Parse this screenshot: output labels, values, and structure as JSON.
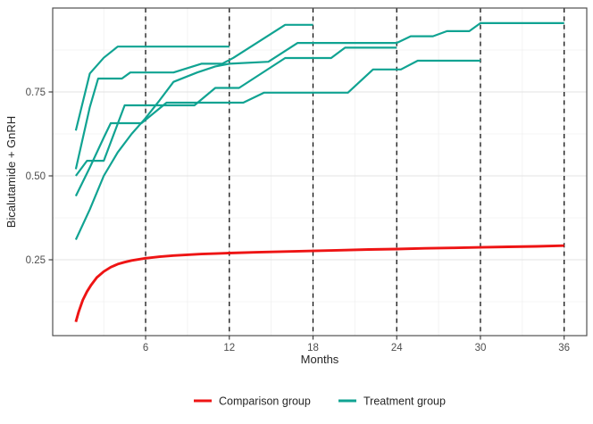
{
  "chart_data": {
    "type": "line",
    "title": "",
    "xlabel": "Months",
    "ylabel": "Bicalutamide + GnRH",
    "xlim": [
      -0.66,
      37.62
    ],
    "ylim": [
      0.024,
      1.0
    ],
    "x_ticks": [
      6,
      12,
      18,
      24,
      30,
      36
    ],
    "x_tick_labels": [
      "6",
      "12",
      "18",
      "24",
      "30",
      "36"
    ],
    "x_minor_ticks": [
      3,
      9,
      15,
      21,
      27,
      33
    ],
    "y_ticks": [
      0.25,
      0.5,
      0.75
    ],
    "y_tick_labels": [
      "0.25",
      "0.50",
      "0.75"
    ],
    "y_minor_ticks": [
      0.125,
      0.375,
      0.625,
      0.875
    ],
    "grid": true,
    "grid_major_color": "#e3e3e3",
    "grid_minor_color": "#f0f0f0",
    "panel_border_color": "#4f4f4f",
    "reference_lines": {
      "vertical_dashed_at": [
        6,
        12,
        18,
        24,
        30,
        36
      ],
      "color": "#111111"
    },
    "legend": {
      "position": "bottom",
      "entries": [
        {
          "label": "Comparison group",
          "color": "#ee1414"
        },
        {
          "label": "Treatment group",
          "color": "#10a392"
        }
      ]
    },
    "series": [
      {
        "name": "Treatment trajectory 1",
        "group": "Treatment group",
        "color": "#10a392",
        "width": 2.2,
        "points": [
          [
            1,
            0.635
          ],
          [
            2,
            0.805
          ],
          [
            3,
            0.852
          ],
          [
            4,
            0.885
          ],
          [
            12,
            0.885
          ]
        ]
      },
      {
        "name": "Treatment trajectory 2",
        "group": "Treatment group",
        "color": "#10a392",
        "width": 2.2,
        "points": [
          [
            1,
            0.52
          ],
          [
            2,
            0.705
          ],
          [
            2.6,
            0.79
          ],
          [
            4.3,
            0.79
          ],
          [
            4.9,
            0.808
          ],
          [
            8,
            0.808
          ],
          [
            10,
            0.834
          ],
          [
            11.5,
            0.834
          ],
          [
            12.3,
            0.852
          ],
          [
            16,
            0.95
          ],
          [
            18,
            0.95
          ]
        ]
      },
      {
        "name": "Treatment trajectory 3",
        "group": "Treatment group",
        "color": "#10a392",
        "width": 2.2,
        "points": [
          [
            1,
            0.5
          ],
          [
            1.8,
            0.545
          ],
          [
            3,
            0.545
          ],
          [
            4.5,
            0.71
          ],
          [
            9.5,
            0.71
          ],
          [
            11,
            0.762
          ],
          [
            12.7,
            0.762
          ],
          [
            16,
            0.851
          ],
          [
            19.3,
            0.851
          ],
          [
            20.3,
            0.882
          ],
          [
            24,
            0.882
          ]
        ]
      },
      {
        "name": "Treatment trajectory 4",
        "group": "Treatment group",
        "color": "#10a392",
        "width": 2.2,
        "points": [
          [
            1,
            0.44
          ],
          [
            2,
            0.525
          ],
          [
            3,
            0.614
          ],
          [
            3.5,
            0.657
          ],
          [
            5.7,
            0.657
          ],
          [
            7.5,
            0.718
          ],
          [
            13,
            0.718
          ],
          [
            14.5,
            0.748
          ],
          [
            20.5,
            0.748
          ],
          [
            22.3,
            0.817
          ],
          [
            24.3,
            0.817
          ],
          [
            25.5,
            0.843
          ],
          [
            30,
            0.843
          ]
        ]
      },
      {
        "name": "Treatment trajectory 5",
        "group": "Treatment group",
        "color": "#10a392",
        "width": 2.2,
        "points": [
          [
            1,
            0.31
          ],
          [
            2,
            0.4
          ],
          [
            3,
            0.5
          ],
          [
            4,
            0.57
          ],
          [
            5,
            0.625
          ],
          [
            6,
            0.672
          ],
          [
            7,
            0.725
          ],
          [
            8,
            0.78
          ],
          [
            9.7,
            0.808
          ],
          [
            11,
            0.826
          ],
          [
            12,
            0.834
          ],
          [
            14.8,
            0.84
          ],
          [
            16.9,
            0.896
          ],
          [
            24,
            0.896
          ],
          [
            25,
            0.916
          ],
          [
            26.6,
            0.916
          ],
          [
            27.6,
            0.931
          ],
          [
            29.2,
            0.931
          ],
          [
            30,
            0.955
          ],
          [
            36,
            0.955
          ]
        ]
      },
      {
        "name": "Comparison group",
        "group": "Comparison group",
        "color": "#ee1414",
        "width": 2.9,
        "points": [
          [
            1,
            0.065
          ],
          [
            1.2,
            0.095
          ],
          [
            1.5,
            0.13
          ],
          [
            1.8,
            0.155
          ],
          [
            2.1,
            0.175
          ],
          [
            2.5,
            0.197
          ],
          [
            3,
            0.215
          ],
          [
            3.5,
            0.228
          ],
          [
            4,
            0.237
          ],
          [
            4.5,
            0.243
          ],
          [
            5,
            0.248
          ],
          [
            6,
            0.2545
          ],
          [
            7,
            0.259
          ],
          [
            8,
            0.2625
          ],
          [
            9,
            0.265
          ],
          [
            10,
            0.267
          ],
          [
            11,
            0.2685
          ],
          [
            12,
            0.27
          ],
          [
            14,
            0.2725
          ],
          [
            16,
            0.2745
          ],
          [
            18,
            0.2765
          ],
          [
            20,
            0.2785
          ],
          [
            22,
            0.2805
          ],
          [
            24,
            0.282
          ],
          [
            26,
            0.284
          ],
          [
            28,
            0.2855
          ],
          [
            30,
            0.287
          ],
          [
            32,
            0.2885
          ],
          [
            34,
            0.29
          ],
          [
            36,
            0.292
          ]
        ]
      }
    ]
  }
}
